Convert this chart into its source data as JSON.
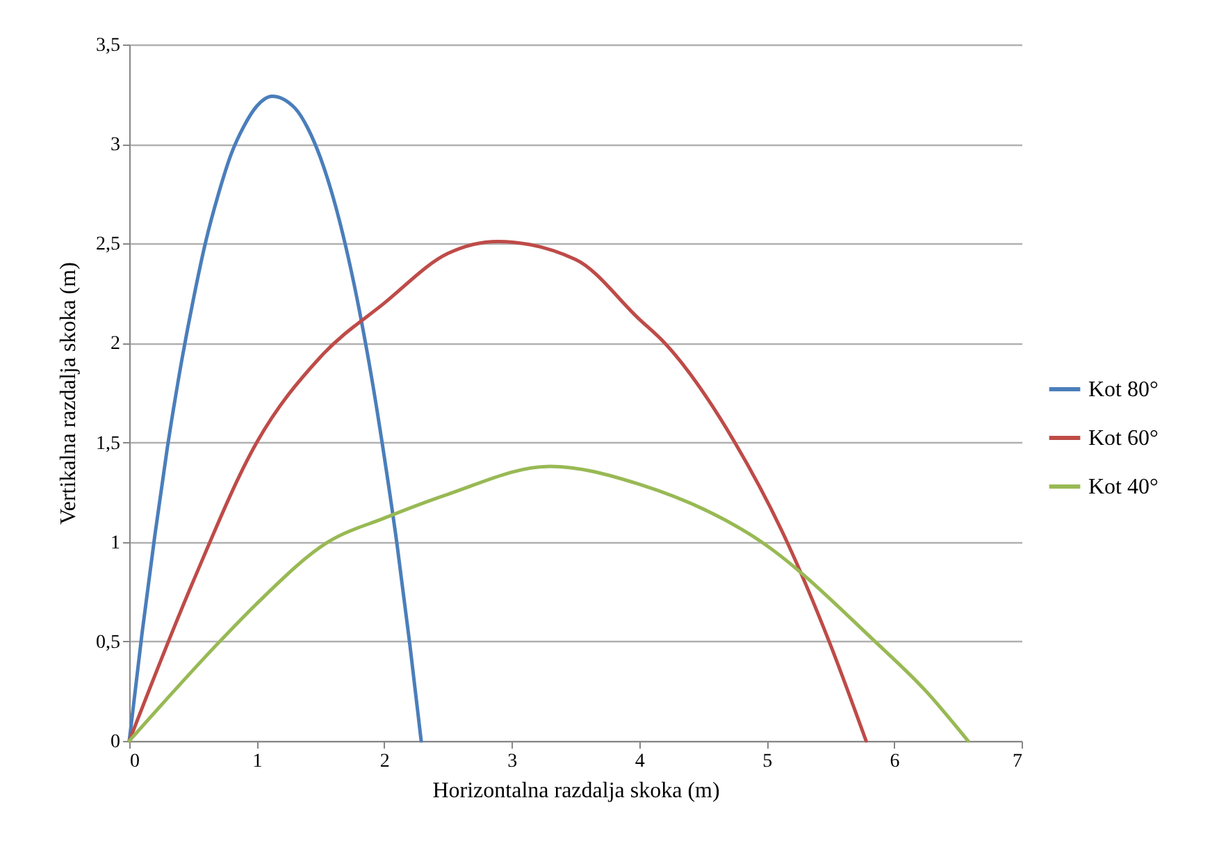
{
  "chart_data": {
    "type": "line",
    "xlabel": "Horizontalna razdalja skoka (m)",
    "ylabel": "Vertikalna razdalja skoka (m)",
    "xlim": [
      0,
      7
    ],
    "xticks": [
      0,
      1,
      2,
      3,
      4,
      5,
      6,
      7
    ],
    "ylim": [
      0,
      3.5
    ],
    "yticks": [
      0,
      {
        "value": 0.5,
        "label": "0,5"
      },
      1,
      {
        "value": 1.5,
        "label": "1,5"
      },
      2,
      {
        "value": 2.5,
        "label": "2,5"
      },
      3,
      {
        "value": 3.5,
        "label": "3,5"
      }
    ],
    "grid": "y",
    "legend": "right",
    "marker": "none",
    "line_style": "solid",
    "series": [
      {
        "name": "Kot 80°",
        "color": "#4a7ebb",
        "x": [
          0,
          0.1,
          0.2,
          0.3,
          0.4,
          0.5,
          0.6,
          0.7,
          0.8,
          0.9,
          1.0,
          1.12,
          1.3,
          1.4,
          1.5,
          1.6,
          1.7,
          1.8,
          1.9,
          2.0,
          2.1,
          2.2,
          2.29
        ],
        "values": [
          0,
          0.54,
          1.03,
          1.48,
          1.87,
          2.21,
          2.51,
          2.75,
          2.95,
          3.09,
          3.19,
          3.24,
          3.18,
          3.08,
          2.93,
          2.73,
          2.48,
          2.18,
          1.83,
          1.43,
          0.99,
          0.49,
          0
        ]
      },
      {
        "name": "Kot 60°",
        "color": "#be4b48",
        "x": [
          0,
          0.5,
          1,
          1.5,
          2,
          2.5,
          2.89,
          3.5,
          4,
          4.2,
          4.75,
          5.16,
          5.49,
          5.78
        ],
        "values": [
          0,
          0.8,
          1.5,
          1.93,
          2.2,
          2.45,
          2.51,
          2.42,
          2.12,
          2,
          1.5,
          1,
          0.5,
          0
        ]
      },
      {
        "name": "Kot 40°",
        "color": "#98b954",
        "x": [
          0,
          0.71,
          1,
          1.56,
          2,
          2.5,
          3.3,
          4,
          4.96,
          5.85,
          6.25,
          6.58
        ],
        "values": [
          0,
          0.5,
          0.69,
          1,
          1.12,
          1.24,
          1.38,
          1.29,
          1,
          0.5,
          0.25,
          0
        ]
      }
    ]
  }
}
